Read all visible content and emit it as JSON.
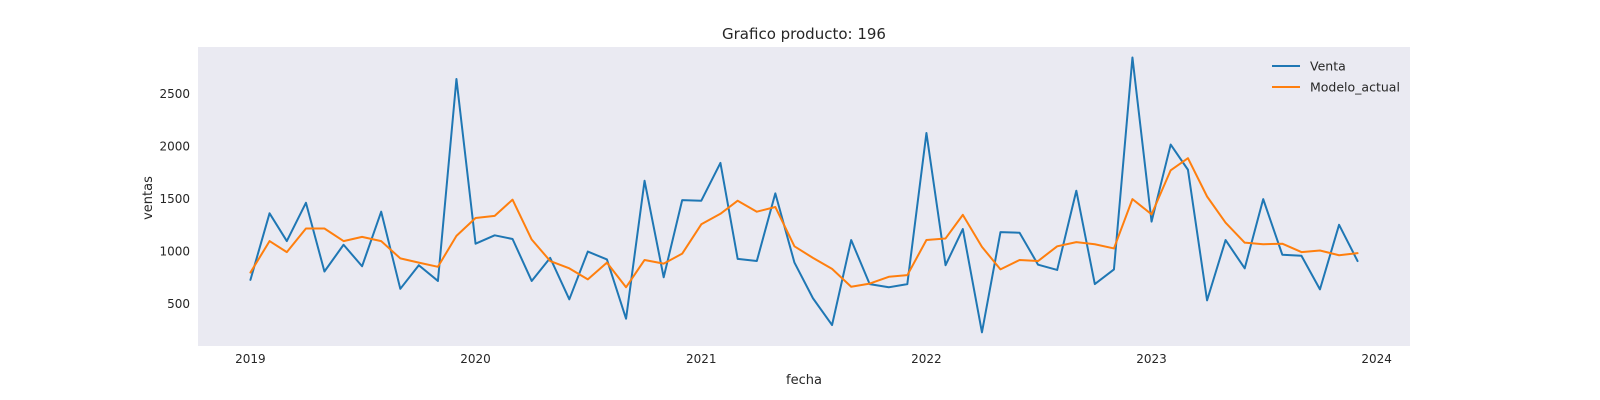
{
  "chart_data": {
    "type": "line",
    "title": "Grafico producto: 196",
    "xlabel": "fecha",
    "ylabel": "ventas",
    "x_range": [
      "2018-10-08",
      "2024-02-24"
    ],
    "ylim": [
      100,
      2950
    ],
    "x_ticks": [
      {
        "label": "2019",
        "date": "2019-01-01"
      },
      {
        "label": "2020",
        "date": "2020-01-01"
      },
      {
        "label": "2021",
        "date": "2021-01-01"
      },
      {
        "label": "2022",
        "date": "2022-01-01"
      },
      {
        "label": "2023",
        "date": "2023-01-01"
      },
      {
        "label": "2024",
        "date": "2024-01-01"
      }
    ],
    "y_ticks": [
      500,
      1000,
      1500,
      2000,
      2500
    ],
    "grid": false,
    "legend_position": "top-right",
    "x": [
      "2019-01-01",
      "2019-02-01",
      "2019-03-01",
      "2019-04-01",
      "2019-05-01",
      "2019-06-01",
      "2019-07-01",
      "2019-08-01",
      "2019-09-01",
      "2019-10-01",
      "2019-11-01",
      "2019-12-01",
      "2020-01-01",
      "2020-02-01",
      "2020-03-01",
      "2020-04-01",
      "2020-05-01",
      "2020-06-01",
      "2020-07-01",
      "2020-08-01",
      "2020-09-01",
      "2020-10-01",
      "2020-11-01",
      "2020-12-01",
      "2021-01-01",
      "2021-02-01",
      "2021-03-01",
      "2021-04-01",
      "2021-05-01",
      "2021-06-01",
      "2021-07-01",
      "2021-08-01",
      "2021-09-01",
      "2021-10-01",
      "2021-11-01",
      "2021-12-01",
      "2022-01-01",
      "2022-02-01",
      "2022-03-01",
      "2022-04-01",
      "2022-05-01",
      "2022-06-01",
      "2022-07-01",
      "2022-08-01",
      "2022-09-01",
      "2022-10-01",
      "2022-11-01",
      "2022-12-01",
      "2023-01-01",
      "2023-02-01",
      "2023-03-01",
      "2023-04-01",
      "2023-05-01",
      "2023-06-01",
      "2023-07-01",
      "2023-08-01",
      "2023-09-01",
      "2023-10-01",
      "2023-11-01",
      "2023-12-01"
    ],
    "series": [
      {
        "name": "Venta",
        "color": "#1f77b4",
        "values": [
          730,
          1365,
          1100,
          1465,
          810,
          1065,
          860,
          1380,
          645,
          870,
          720,
          2645,
          1075,
          1155,
          1120,
          720,
          940,
          545,
          1000,
          925,
          360,
          1675,
          755,
          1490,
          1485,
          1845,
          930,
          910,
          1555,
          895,
          555,
          300,
          1110,
          690,
          660,
          690,
          2130,
          870,
          1215,
          230,
          1185,
          1180,
          875,
          825,
          1580,
          690,
          830,
          2850,
          1285,
          2020,
          1780,
          535,
          1110,
          840,
          1500,
          970,
          960,
          640,
          1255,
          910
        ]
      },
      {
        "name": "Modelo_actual",
        "color": "#ff7f0e",
        "values": [
          800,
          1100,
          995,
          1220,
          1220,
          1100,
          1140,
          1100,
          935,
          895,
          855,
          1150,
          1320,
          1340,
          1495,
          1115,
          910,
          840,
          735,
          895,
          660,
          920,
          885,
          980,
          1260,
          1360,
          1485,
          1380,
          1425,
          1050,
          940,
          835,
          665,
          695,
          760,
          775,
          1110,
          1125,
          1350,
          1045,
          830,
          920,
          910,
          1050,
          1090,
          1070,
          1030,
          1500,
          1355,
          1775,
          1890,
          1525,
          1275,
          1085,
          1070,
          1075,
          995,
          1010,
          965,
          985
        ]
      }
    ]
  }
}
